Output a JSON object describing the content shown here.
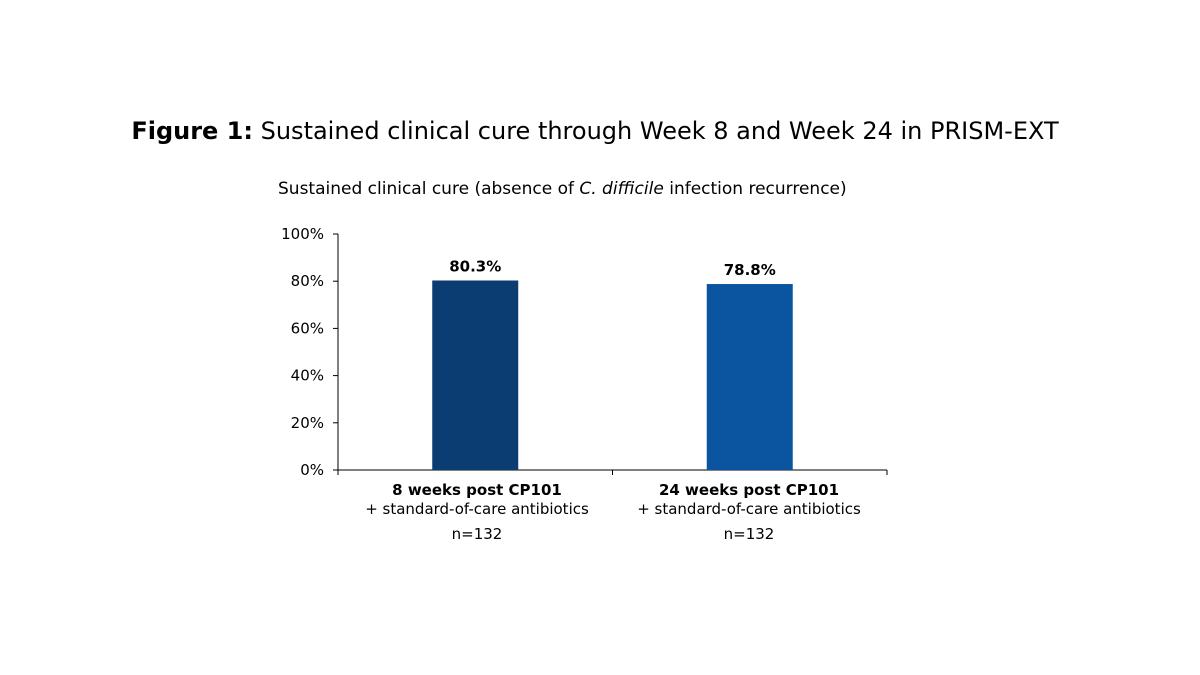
{
  "figure": {
    "label": "Figure 1:",
    "title": " Sustained clinical cure through Week 8 and Week 24 in PRISM-EXT"
  },
  "subtitle": {
    "before": "Sustained clinical cure (absence of ",
    "italic": "C. difficile",
    "after": " infection recurrence)"
  },
  "chart_data": {
    "type": "bar",
    "categories": [
      "8 weeks post CP101",
      "24 weeks post CP101"
    ],
    "category_descriptions": [
      "+ standard-of-care antibiotics",
      "+ standard-of-care antibiotics"
    ],
    "category_n": [
      "n=132",
      "n=132"
    ],
    "values": [
      80.3,
      78.8
    ],
    "value_labels": [
      "80.3%",
      "78.8%"
    ],
    "colors": [
      "#0b3c72",
      "#0b55a0"
    ],
    "ylim": [
      0,
      100
    ],
    "yticks": [
      0,
      20,
      40,
      60,
      80,
      100
    ],
    "ytick_labels": [
      "0%",
      "20%",
      "40%",
      "60%",
      "80%",
      "100%"
    ],
    "grid": false,
    "legend": "none"
  }
}
